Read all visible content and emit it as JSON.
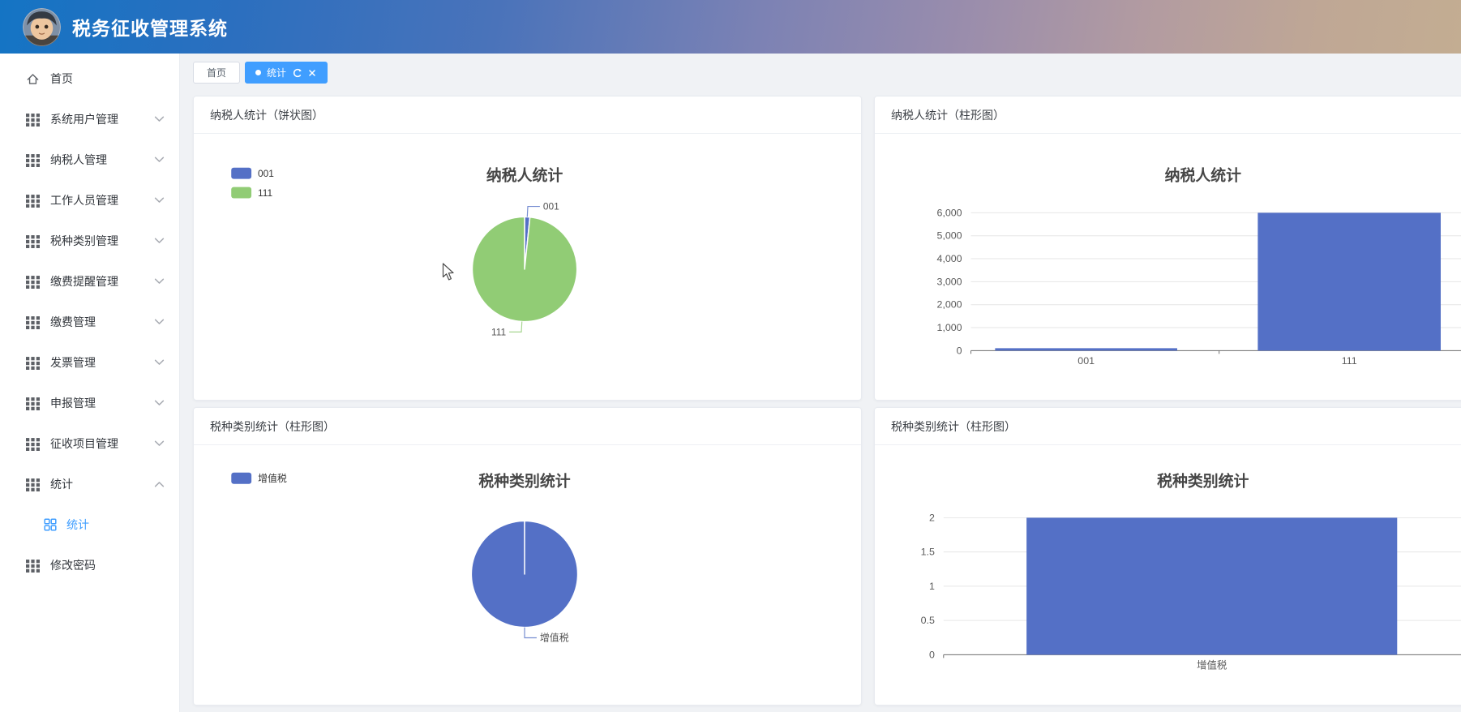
{
  "header": {
    "title": "税务征收管理系统",
    "avatar": "cartoon-user-avatar"
  },
  "sidebar": {
    "items": [
      {
        "label": "首页",
        "icon": "home-icon",
        "has_submenu": false
      },
      {
        "label": "系统用户管理",
        "icon": "grid-icon",
        "has_submenu": true,
        "state": "collapsed"
      },
      {
        "label": "纳税人管理",
        "icon": "grid-icon",
        "has_submenu": true,
        "state": "collapsed"
      },
      {
        "label": "工作人员管理",
        "icon": "grid-icon",
        "has_submenu": true,
        "state": "collapsed"
      },
      {
        "label": "税种类别管理",
        "icon": "grid-icon",
        "has_submenu": true,
        "state": "collapsed"
      },
      {
        "label": "缴费提醒管理",
        "icon": "grid-icon",
        "has_submenu": true,
        "state": "collapsed"
      },
      {
        "label": "缴费管理",
        "icon": "grid-icon",
        "has_submenu": true,
        "state": "collapsed"
      },
      {
        "label": "发票管理",
        "icon": "grid-icon",
        "has_submenu": true,
        "state": "collapsed"
      },
      {
        "label": "申报管理",
        "icon": "grid-icon",
        "has_submenu": true,
        "state": "collapsed"
      },
      {
        "label": "征收项目管理",
        "icon": "grid-icon",
        "has_submenu": true,
        "state": "collapsed"
      },
      {
        "label": "统计",
        "icon": "grid-icon",
        "has_submenu": true,
        "state": "expanded",
        "children": [
          {
            "label": "统计",
            "icon": "squares-icon",
            "active": true
          }
        ]
      },
      {
        "label": "修改密码",
        "icon": "grid-icon",
        "has_submenu": false
      }
    ]
  },
  "tabbar": {
    "tabs": [
      {
        "label": "首页",
        "active": false
      },
      {
        "label": "统计",
        "active": true,
        "icons": [
          "dot-icon",
          "refresh-icon",
          "close-icon"
        ]
      }
    ]
  },
  "panels": [
    {
      "title": "纳税人统计（饼状图）"
    },
    {
      "title": "纳税人统计（柱形图）"
    },
    {
      "title": "税种类别统计（柱形图）"
    },
    {
      "title": "税种类别统计（柱形图）"
    }
  ],
  "colors": {
    "header_gradient_left": "#1474c4",
    "header_gradient_right": "#c3ad92",
    "tab_active": "#409eff",
    "sidebar_active": "#409eff",
    "chart_blue": "#5470c6",
    "chart_green": "#91cc75"
  },
  "chart_data": [
    {
      "type": "pie",
      "title": "纳税人统计",
      "legend": [
        "001",
        "111"
      ],
      "legend_position": "top-left",
      "labels": [
        "001",
        "111"
      ],
      "values": [
        100,
        6000
      ],
      "colors": [
        "#5470c6",
        "#91cc75"
      ]
    },
    {
      "type": "bar",
      "title": "纳税人统计",
      "categories": [
        "001",
        "111"
      ],
      "values": [
        100,
        6000
      ],
      "ylim": [
        0,
        6000
      ],
      "ytick_labels": [
        "0",
        "1,000",
        "2,000",
        "3,000",
        "4,000",
        "5,000",
        "6,000"
      ],
      "bar_color": "#5470c6",
      "grid": true,
      "legend_position": "none"
    },
    {
      "type": "pie",
      "title": "税种类别统计",
      "legend": [
        "增值税"
      ],
      "legend_position": "top-left",
      "labels": [
        "增值税"
      ],
      "values": [
        2
      ],
      "colors": [
        "#5470c6"
      ]
    },
    {
      "type": "bar",
      "title": "税种类别统计",
      "categories": [
        "增值税"
      ],
      "values": [
        2
      ],
      "ylim": [
        0,
        2
      ],
      "ytick_labels": [
        "0",
        "0.5",
        "1",
        "1.5",
        "2"
      ],
      "bar_color": "#5470c6",
      "grid": true,
      "legend_position": "none"
    }
  ]
}
